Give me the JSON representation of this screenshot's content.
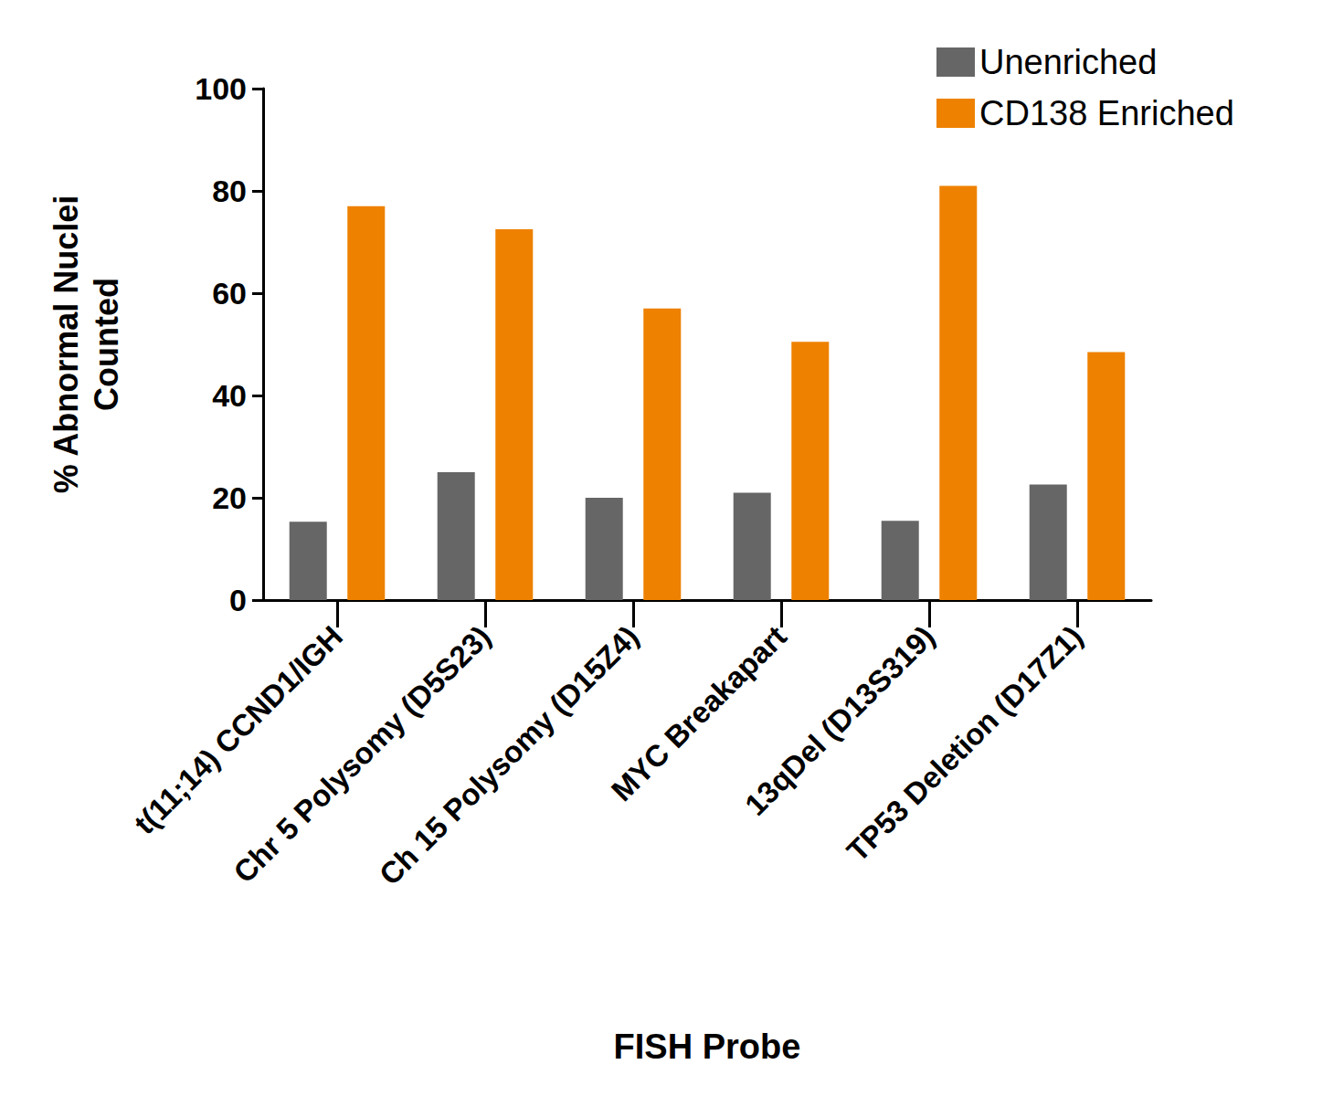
{
  "chart_data": {
    "type": "bar",
    "x_label": "FISH Probe",
    "y_label": "% Abnormal Nuclei Counted",
    "categories": [
      "t(11;14) CCND1/IGH",
      "Chr 5 Polysomy (D5S23)",
      "Ch 15 Polysomy (D15Z4)",
      "MYC Breakapart",
      "13qDel (D13S319)",
      "TP53 Deletion (D17Z1)"
    ],
    "series": [
      {
        "name": "Unenriched",
        "color": "#666666",
        "values": [
          15.3,
          25,
          20,
          21,
          15.5,
          22.6
        ]
      },
      {
        "name": "CD138 Enriched",
        "color": "#ee8100",
        "values": [
          77,
          72.5,
          57,
          50.5,
          81,
          48.5
        ]
      }
    ],
    "ylim": [
      0,
      100
    ],
    "yticks": [
      0,
      20,
      40,
      60,
      80,
      100
    ],
    "grid": false,
    "legend": "upper right"
  }
}
